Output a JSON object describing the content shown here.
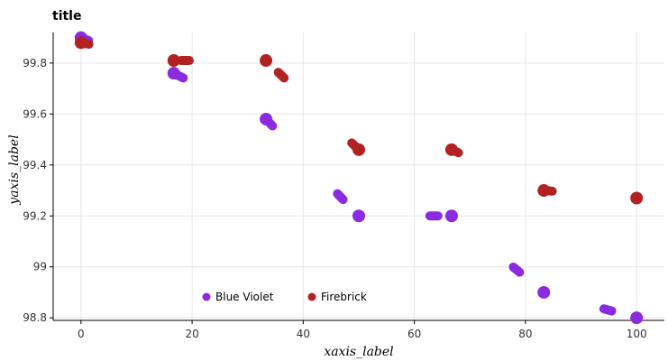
{
  "chart_data": {
    "type": "line",
    "title": "title",
    "xlabel": "xaxis_label",
    "ylabel": "yaxis_label",
    "x": [
      0,
      16.7,
      33.3,
      50,
      66.7,
      83.3,
      100
    ],
    "xticks": [
      "0",
      "20",
      "40",
      "60",
      "80",
      "100"
    ],
    "yticks": [
      "98.8",
      "99",
      "99.2",
      "99.4",
      "99.6",
      "99.8"
    ],
    "xlim": [
      -5,
      105
    ],
    "ylim": [
      98.79,
      99.92
    ],
    "grid": true,
    "legend_position": "bottom-center",
    "series": [
      {
        "name": "Blue Violet",
        "color": "#8a2be2",
        "values": [
          99.9,
          99.76,
          99.58,
          99.2,
          99.2,
          98.9,
          98.8
        ]
      },
      {
        "name": "Firebrick",
        "color": "#b22222",
        "values": [
          99.88,
          99.81,
          99.81,
          99.46,
          99.46,
          99.3,
          99.27
        ]
      }
    ]
  }
}
